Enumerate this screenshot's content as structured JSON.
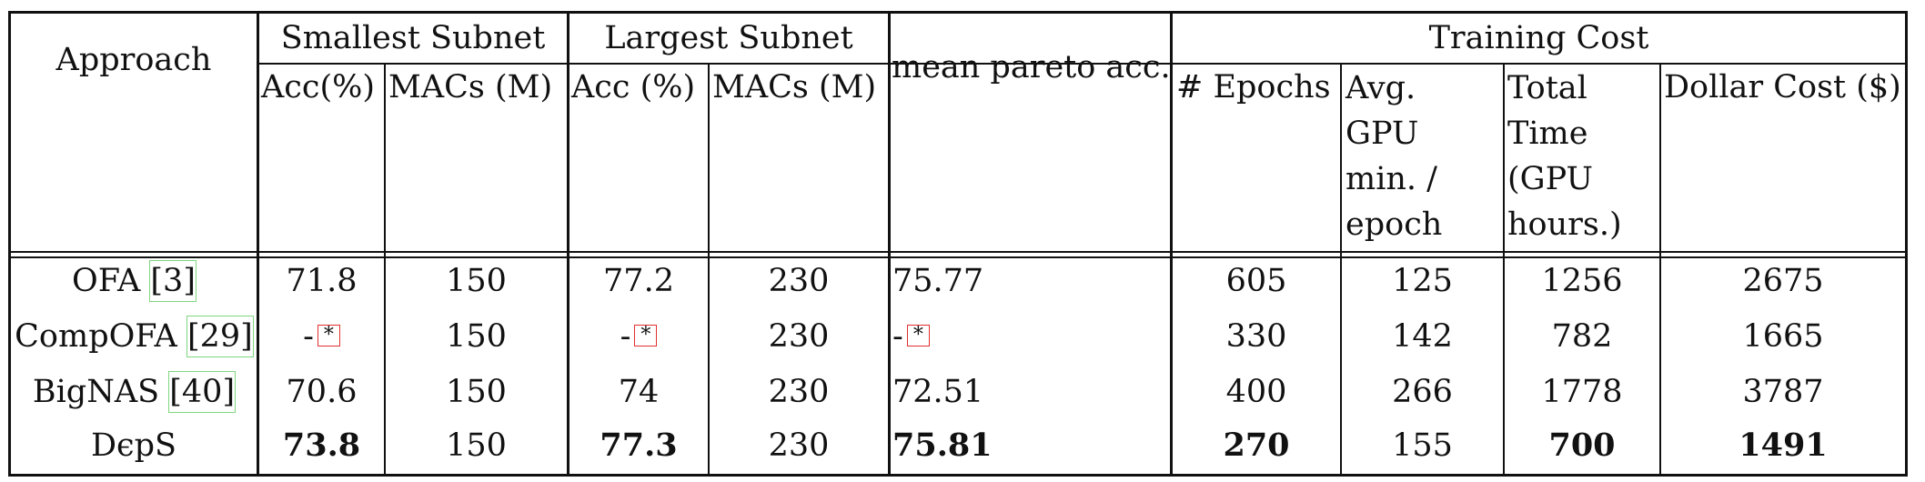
{
  "headers": {
    "approach": "Approach",
    "smallest": "Smallest Subnet",
    "largest": "Largest Subnet",
    "mean_pareto": "mean pareto acc.",
    "training_cost": "Training Cost",
    "sm_acc": "Acc(%)",
    "sm_macs": "MACs (M)",
    "lg_acc": "Acc (%)",
    "lg_macs": "MACs (M)",
    "epochs": "# Epochs",
    "gpu_min": "Avg. GPU min. / epoch",
    "total_time": "Total Time (GPU hours.)",
    "dollar": "Dollar Cost ($)"
  },
  "rows": [
    {
      "name": "OFA",
      "ref": "3",
      "sm_acc": "71.8",
      "sm_macs": "150",
      "lg_acc": "77.2",
      "lg_macs": "230",
      "mean": "75.77",
      "epochs": "605",
      "gpu": "125",
      "time": "1256",
      "cost": "2675"
    },
    {
      "name": "CompOFA",
      "ref": "29",
      "sm_acc": "-",
      "sm_acc_note": "*",
      "sm_macs": "150",
      "lg_acc": "-",
      "lg_acc_note": "*",
      "lg_macs": "230",
      "mean": "-",
      "mean_note": "*",
      "epochs": "330",
      "gpu": "142",
      "time": "782",
      "cost": "1665"
    },
    {
      "name": "BigNAS",
      "ref": "40",
      "sm_acc": "70.6",
      "sm_macs": "150",
      "lg_acc": "74",
      "lg_macs": "230",
      "mean": "72.51",
      "epochs": "400",
      "gpu": "266",
      "time": "1778",
      "cost": "3787"
    },
    {
      "name": "DϵpS",
      "sm_acc": "73.8",
      "sm_macs": "150",
      "lg_acc": "77.3",
      "lg_macs": "230",
      "mean": "75.81",
      "epochs": "270",
      "gpu": "155",
      "time": "700",
      "cost": "1491"
    }
  ]
}
